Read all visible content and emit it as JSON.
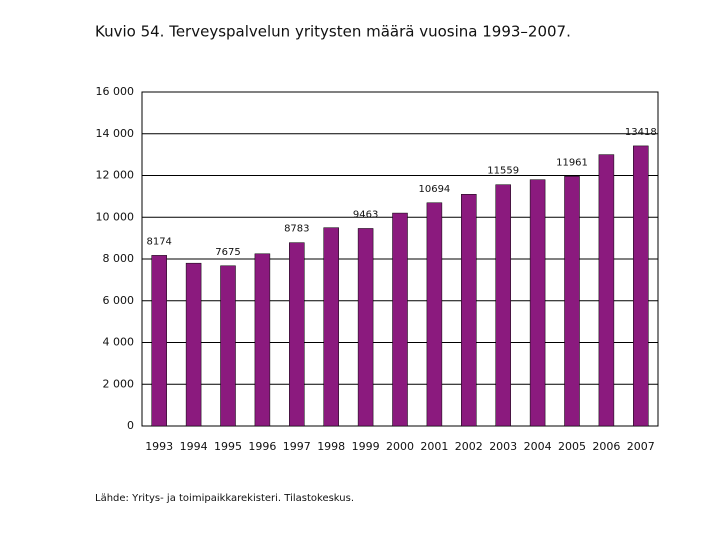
{
  "chart_data": {
    "type": "bar",
    "title": "Kuvio 54. Terveyspalvelun yritysten määrä vuosina 1993–2007.",
    "source": "Lähde: Yritys- ja toimipaikkarekisteri. Tilastokeskus.",
    "categories": [
      "1993",
      "1994",
      "1995",
      "1996",
      "1997",
      "1998",
      "1999",
      "2000",
      "2001",
      "2002",
      "2003",
      "2004",
      "2005",
      "2006",
      "2007"
    ],
    "values": [
      8174,
      7800,
      7675,
      8250,
      8783,
      9500,
      9463,
      10200,
      10694,
      11100,
      11559,
      11800,
      11961,
      13000,
      13418
    ],
    "value_labels": [
      "8174",
      null,
      "7675",
      null,
      "8783",
      null,
      "9463",
      null,
      "10694",
      null,
      "11559",
      null,
      "11961",
      null,
      "13418"
    ],
    "color": "#8b1a7e",
    "ylim": [
      0,
      16000
    ],
    "yticks": [
      0,
      {
        "value": 2000,
        "label": "2 000"
      },
      {
        "value": 4000,
        "label": "4 000"
      },
      {
        "value": 6000,
        "label": "6 000"
      },
      {
        "value": 8000,
        "label": "8 000"
      },
      {
        "value": 10000,
        "label": "10 000"
      },
      {
        "value": 12000,
        "label": "12 000"
      },
      {
        "value": 14000,
        "label": "14 000"
      },
      {
        "value": 16000,
        "label": "16 000"
      }
    ],
    "grid": true
  }
}
